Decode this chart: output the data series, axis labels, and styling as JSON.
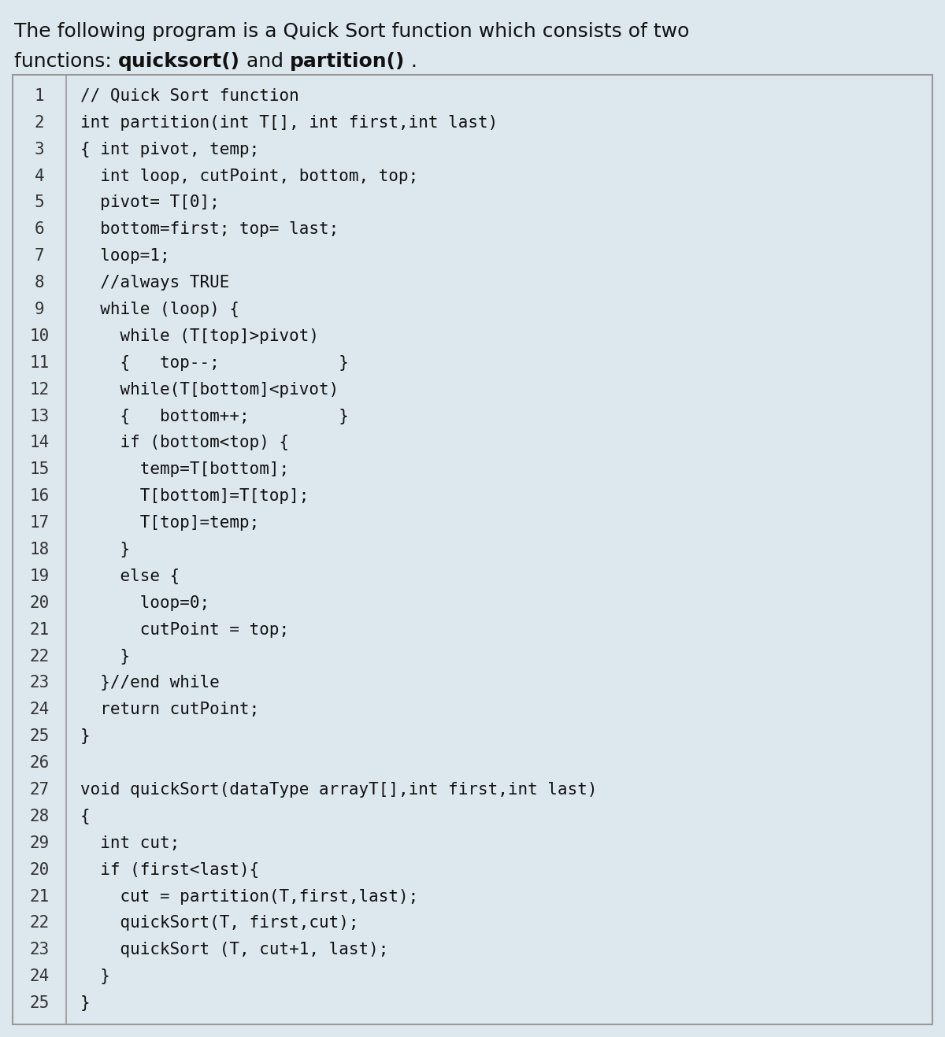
{
  "bg_color": "#dce8ee",
  "box_bg_color": "#dce8ee",
  "box_border_color": "#999999",
  "title_line1": "The following program is a Quick Sort function which consists of two",
  "title_line2_pre": "functions: ",
  "title_bold1": "quicksort()",
  "title_mid": " and ",
  "title_bold2": "partition()",
  "title_end": " .",
  "title_fontsize": 18,
  "code_fontsize": 15,
  "code_lines": [
    [
      1,
      "// Quick Sort function"
    ],
    [
      2,
      "int partition(int T[], int first,int last)"
    ],
    [
      3,
      "{ int pivot, temp;"
    ],
    [
      4,
      "  int loop, cutPoint, bottom, top;"
    ],
    [
      5,
      "  pivot= T[0];"
    ],
    [
      6,
      "  bottom=first; top= last;"
    ],
    [
      7,
      "  loop=1;"
    ],
    [
      8,
      "  //always TRUE"
    ],
    [
      9,
      "  while (loop) {"
    ],
    [
      10,
      "    while (T[top]>pivot)"
    ],
    [
      11,
      "    {   top--;            }"
    ],
    [
      12,
      "    while(T[bottom]<pivot)"
    ],
    [
      13,
      "    {   bottom++;         }"
    ],
    [
      14,
      "    if (bottom<top) {"
    ],
    [
      15,
      "      temp=T[bottom];"
    ],
    [
      16,
      "      T[bottom]=T[top];"
    ],
    [
      17,
      "      T[top]=temp;"
    ],
    [
      18,
      "    }"
    ],
    [
      19,
      "    else {"
    ],
    [
      20,
      "      loop=0;"
    ],
    [
      21,
      "      cutPoint = top;"
    ],
    [
      22,
      "    }"
    ],
    [
      23,
      "  }//end while"
    ],
    [
      24,
      "  return cutPoint;"
    ],
    [
      25,
      "}"
    ],
    [
      26,
      ""
    ],
    [
      27,
      "void quickSort(dataType arrayT[],int first,int last)"
    ],
    [
      28,
      "{"
    ],
    [
      29,
      "  int cut;"
    ],
    [
      20,
      "  if (first<last){"
    ],
    [
      21,
      "    cut = partition(T,first,last);"
    ],
    [
      22,
      "    quickSort(T, first,cut);"
    ],
    [
      23,
      "    quickSort (T, cut+1, last);"
    ],
    [
      24,
      "  }"
    ],
    [
      25,
      "}"
    ]
  ],
  "fig_width": 12.0,
  "fig_height": 13.17,
  "dpi": 100
}
